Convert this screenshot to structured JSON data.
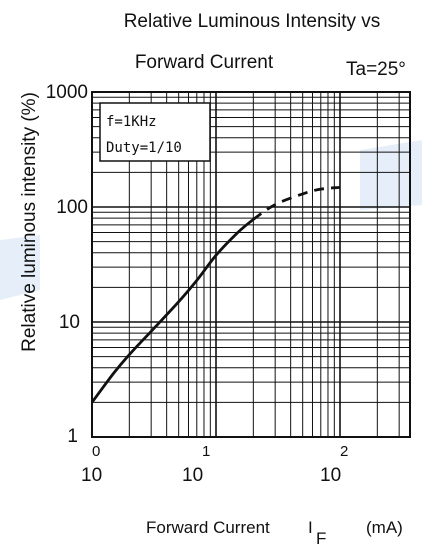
{
  "chart_data": {
    "type": "line",
    "title": "Relative Luminous Intensity vs",
    "title_line2": "Forward Current",
    "ambient": "Ta=25°",
    "ylabel": "Relative luminous intensity  (%)",
    "xlabel_main": "Forward Current",
    "xlabel_symbol": "I",
    "xlabel_subscript": "F",
    "xlabel_unit": "(mA)",
    "condition_freq": "f=1KHz",
    "condition_duty": "Duty=1/10",
    "x_scale": "log",
    "y_scale": "log",
    "xlim": [
      1,
      400
    ],
    "ylim": [
      1,
      1000
    ],
    "grid": true,
    "y_ticks": [
      {
        "value": 1000,
        "label": "1000"
      },
      {
        "value": 100,
        "label": "100"
      },
      {
        "value": 10,
        "label": "10"
      },
      {
        "value": 1,
        "label": "1"
      }
    ],
    "x_ticks": [
      {
        "value": 1,
        "base": "10",
        "exp": "0"
      },
      {
        "value": 10,
        "base": "10",
        "exp": "1"
      },
      {
        "value": 100,
        "base": "10",
        "exp": "2"
      }
    ],
    "series": [
      {
        "style": "solid",
        "x": [
          1,
          1.5,
          2,
          3,
          5,
          7,
          10,
          15,
          20
        ],
        "y": [
          2,
          3.6,
          5.2,
          8.3,
          15,
          23,
          38,
          60,
          78
        ]
      },
      {
        "style": "dashed",
        "x": [
          20,
          30,
          50,
          70,
          100
        ],
        "y": [
          78,
          105,
          130,
          143,
          148
        ]
      }
    ]
  }
}
